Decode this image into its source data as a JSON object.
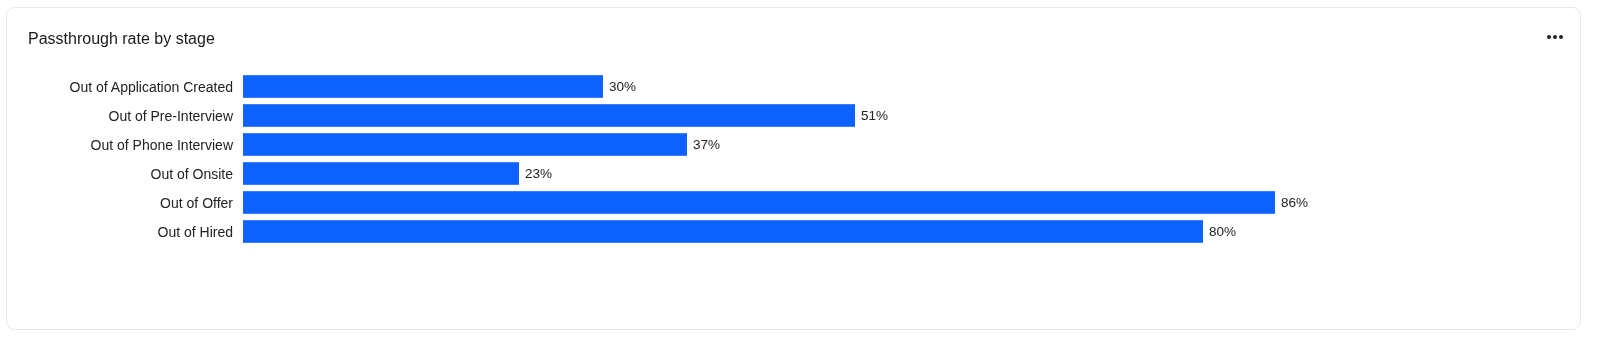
{
  "chart_data": {
    "type": "bar",
    "orientation": "horizontal",
    "title": "Passthrough rate by stage",
    "categories": [
      "Out of Application Created",
      "Out of Pre-Interview",
      "Out of Phone Interview",
      "Out of Onsite",
      "Out of Offer",
      "Out of Hired"
    ],
    "values": [
      30,
      51,
      37,
      23,
      86,
      80
    ],
    "value_labels": [
      "30%",
      "51%",
      "37%",
      "23%",
      "86%",
      "80%"
    ],
    "color": "#0d62ff"
  }
}
